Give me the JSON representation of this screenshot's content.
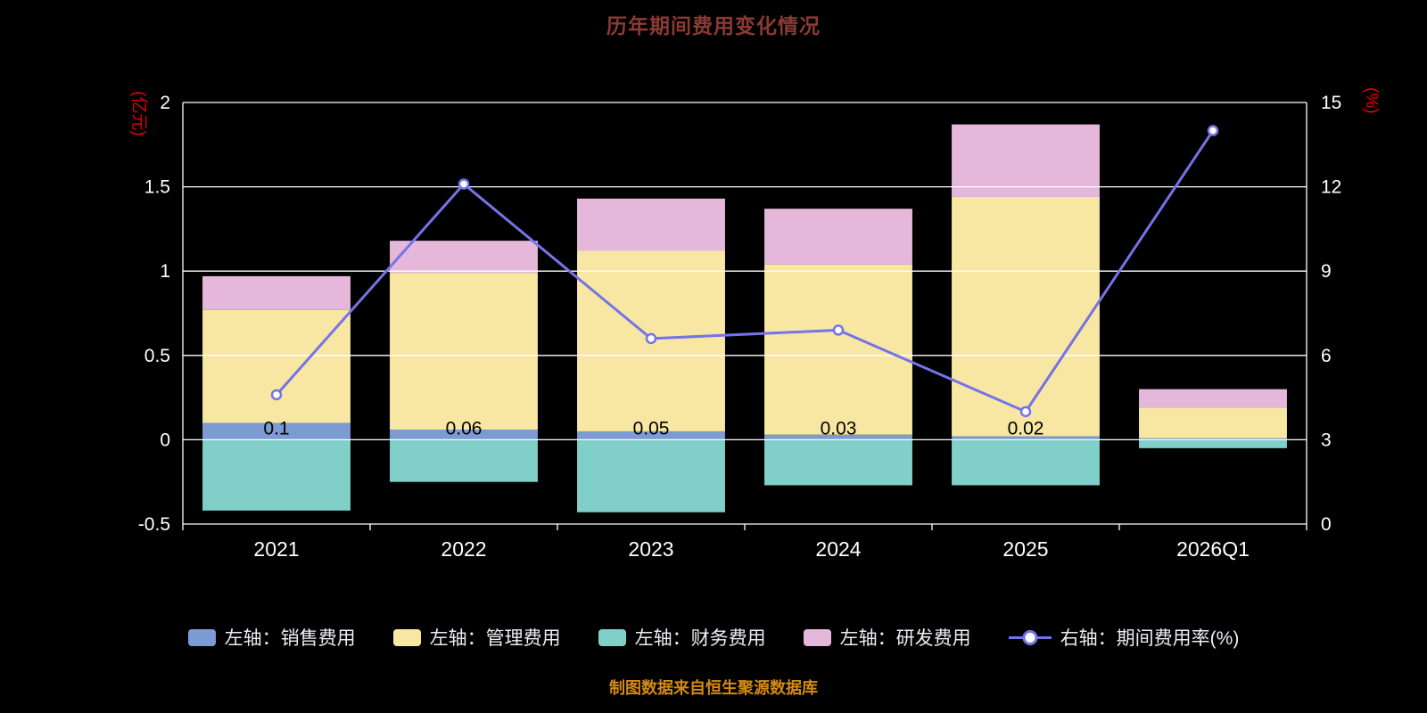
{
  "title": "历年期间费用变化情况",
  "source_note": "制图数据来自恒生聚源数据库",
  "colors": {
    "background": "#000000",
    "title": "#8B3A33",
    "axis_unit": "#E60000",
    "tick_label": "#FFFFFF",
    "grid": "#FFFFFF",
    "bar_label": "#000000",
    "legend_text": "#EDEDF5",
    "source_note": "#D38A12",
    "marker_fill": "#FFFFFF"
  },
  "chart_data": {
    "type": "bar",
    "subtype": "stacked-bars-with-line-overlay",
    "title": "历年期间费用变化情况",
    "categories": [
      "2021",
      "2022",
      "2023",
      "2024",
      "2025",
      "2026Q1"
    ],
    "series": [
      {
        "name": "左轴：销售费用",
        "type": "bar",
        "axis": "left",
        "color": "#7C9BD3",
        "values": [
          0.1,
          0.06,
          0.05,
          0.03,
          0.02,
          0.01
        ]
      },
      {
        "name": "左轴：管理费用",
        "type": "bar",
        "axis": "left",
        "color": "#F7E7A2",
        "values": [
          0.67,
          0.93,
          1.07,
          1.01,
          1.42,
          0.18
        ]
      },
      {
        "name": "左轴：财务费用",
        "type": "bar",
        "axis": "left",
        "color": "#80CFC9",
        "values": [
          -0.42,
          -0.25,
          -0.43,
          -0.27,
          -0.27,
          -0.05
        ]
      },
      {
        "name": "左轴：研发费用",
        "type": "bar",
        "axis": "left",
        "color": "#E5B8DB",
        "values": [
          0.2,
          0.19,
          0.31,
          0.33,
          0.43,
          0.11
        ]
      },
      {
        "name": "右轴：期间费用率(%)",
        "type": "line",
        "axis": "right",
        "color": "#7473E9",
        "values": [
          4.6,
          12.1,
          6.6,
          6.9,
          4.0,
          14.0
        ]
      }
    ],
    "bar_value_labels": [
      "0.1",
      "0.06",
      "0.05",
      "0.03",
      "0.02",
      ""
    ],
    "left_axis": {
      "unit": "(亿元)",
      "min": -0.5,
      "max": 2,
      "tick_values": [
        -0.5,
        0,
        0.5,
        1,
        1.5,
        2
      ],
      "tick_labels": [
        "-0.5",
        "0",
        "0.5",
        "1",
        "1.5",
        "2"
      ]
    },
    "right_axis": {
      "unit": "(%)",
      "min": 0,
      "max": 15,
      "tick_values": [
        0,
        3,
        6,
        9,
        12,
        15
      ],
      "tick_labels": [
        "0",
        "3",
        "6",
        "9",
        "12",
        "15"
      ]
    },
    "grid": true,
    "legend_position": "bottom"
  }
}
